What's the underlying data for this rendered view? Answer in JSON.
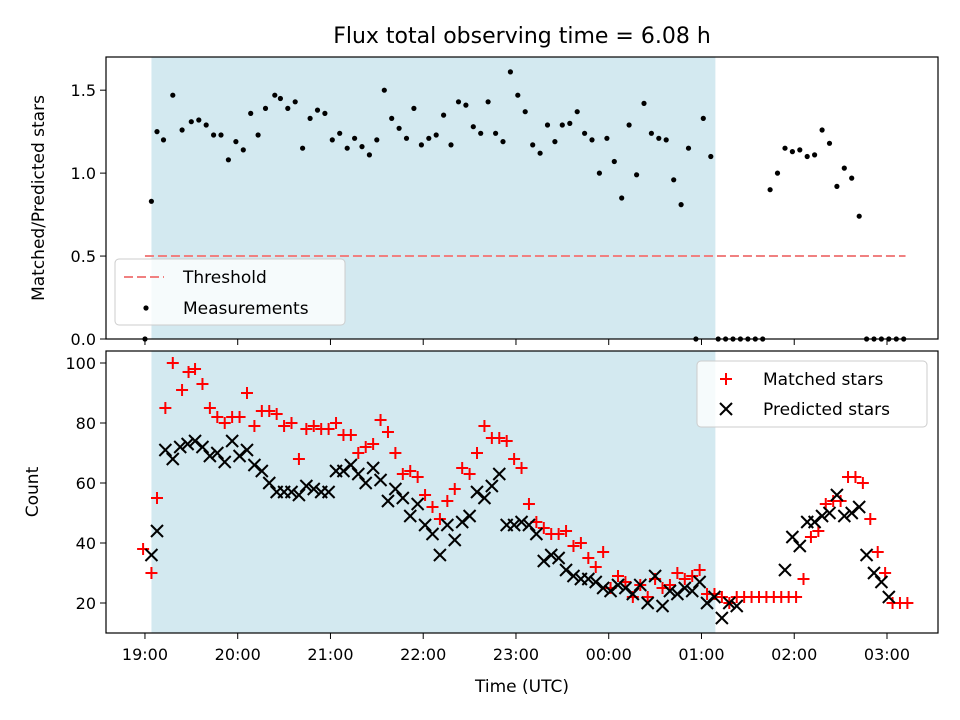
{
  "chart_data": [
    {
      "type": "scatter",
      "title": "Flux total observing time = 6.08 h",
      "xlabel": "",
      "ylabel": "Matched/Predicted stars",
      "ylim": [
        0,
        1.7
      ],
      "yticks": [
        0.0,
        0.5,
        1.0,
        1.5
      ],
      "ytick_labels": [
        "0.0",
        "0.5",
        "1.0",
        "1.5"
      ],
      "xlim_hours": [
        -0.42,
        8.55
      ],
      "shaded_region": {
        "start": 0.07,
        "end": 6.15,
        "color": "#d3e9f0"
      },
      "threshold": {
        "name": "Threshold",
        "value": 0.5,
        "x_start": 0.0,
        "x_end": 8.2,
        "color": "#f08080"
      },
      "legend_position": "lower-left",
      "series": [
        {
          "name": "Measurements",
          "color": "#000000",
          "x": [
            0.0,
            0.07,
            0.13,
            0.2,
            0.3,
            0.4,
            0.5,
            0.58,
            0.66,
            0.74,
            0.82,
            0.9,
            0.98,
            1.06,
            1.14,
            1.22,
            1.3,
            1.4,
            1.46,
            1.54,
            1.62,
            1.7,
            1.78,
            1.86,
            1.94,
            2.02,
            2.1,
            2.18,
            2.26,
            2.34,
            2.42,
            2.5,
            2.58,
            2.66,
            2.74,
            2.82,
            2.9,
            2.98,
            3.06,
            3.14,
            3.22,
            3.3,
            3.38,
            3.46,
            3.54,
            3.62,
            3.7,
            3.78,
            3.86,
            3.94,
            4.02,
            4.1,
            4.18,
            4.26,
            4.34,
            4.42,
            4.5,
            4.58,
            4.66,
            4.74,
            4.82,
            4.9,
            4.98,
            5.06,
            5.14,
            5.22,
            5.3,
            5.38,
            5.46,
            5.54,
            5.62,
            5.7,
            5.78,
            5.86,
            5.94,
            6.02,
            6.1,
            6.18,
            6.26,
            6.34,
            6.42,
            6.5,
            6.58,
            6.66,
            6.74,
            6.82,
            6.9,
            6.98,
            7.06,
            7.14,
            7.22,
            7.3,
            7.38,
            7.46,
            7.54,
            7.62,
            7.7,
            7.78,
            7.86,
            7.94,
            8.02,
            8.1,
            8.18
          ],
          "y": [
            0.0,
            0.83,
            1.25,
            1.2,
            1.47,
            1.26,
            1.31,
            1.32,
            1.29,
            1.23,
            1.23,
            1.08,
            1.19,
            1.14,
            1.36,
            1.23,
            1.39,
            1.47,
            1.45,
            1.39,
            1.43,
            1.15,
            1.33,
            1.38,
            1.36,
            1.2,
            1.24,
            1.15,
            1.21,
            1.16,
            1.11,
            1.2,
            1.5,
            1.33,
            1.27,
            1.21,
            1.39,
            1.17,
            1.21,
            1.23,
            1.35,
            1.17,
            1.43,
            1.41,
            1.28,
            1.24,
            1.43,
            1.24,
            1.19,
            1.61,
            1.47,
            1.37,
            1.17,
            1.12,
            1.29,
            1.19,
            1.29,
            1.3,
            1.37,
            1.24,
            1.2,
            1.0,
            1.21,
            1.07,
            0.85,
            1.29,
            0.99,
            1.42,
            1.24,
            1.21,
            1.2,
            0.96,
            0.81,
            1.15,
            0.0,
            1.33,
            1.1,
            0.0,
            0.0,
            0.0,
            0.0,
            0.0,
            0.0,
            0.0,
            0.9,
            1.0,
            1.15,
            1.13,
            1.14,
            1.1,
            1.11,
            1.26,
            1.18,
            0.92,
            1.03,
            0.97,
            0.74,
            0.0,
            0.0,
            0.0,
            0.0,
            0.0,
            0.0
          ]
        }
      ]
    },
    {
      "type": "scatter",
      "title": "",
      "xlabel": "Time (UTC)",
      "ylabel": "Count",
      "ylim": [
        10,
        104
      ],
      "yticks": [
        20,
        40,
        60,
        80,
        100
      ],
      "ytick_labels": [
        "20",
        "40",
        "60",
        "80",
        "100"
      ],
      "xlim_hours": [
        -0.42,
        8.55
      ],
      "xticks_hours": [
        0,
        1,
        2,
        3,
        4,
        5,
        6,
        7,
        8
      ],
      "xtick_labels": [
        "19:00",
        "20:00",
        "21:00",
        "22:00",
        "23:00",
        "00:00",
        "01:00",
        "02:00",
        "03:00"
      ],
      "shaded_region": {
        "start": 0.07,
        "end": 6.15,
        "color": "#d3e9f0"
      },
      "legend_position": "upper-right",
      "series": [
        {
          "name": "Matched stars",
          "marker": "+",
          "color": "#ff0000",
          "x": [
            -0.02,
            0.07,
            0.13,
            0.22,
            0.3,
            0.4,
            0.47,
            0.54,
            0.62,
            0.7,
            0.78,
            0.86,
            0.94,
            1.02,
            1.1,
            1.18,
            1.26,
            1.34,
            1.42,
            1.5,
            1.58,
            1.66,
            1.74,
            1.82,
            1.9,
            1.98,
            2.06,
            2.14,
            2.22,
            2.3,
            2.38,
            2.46,
            2.54,
            2.62,
            2.7,
            2.78,
            2.86,
            2.94,
            3.02,
            3.1,
            3.18,
            3.26,
            3.34,
            3.42,
            3.5,
            3.58,
            3.66,
            3.74,
            3.82,
            3.9,
            3.98,
            4.06,
            4.14,
            4.22,
            4.3,
            4.38,
            4.46,
            4.54,
            4.62,
            4.7,
            4.78,
            4.86,
            4.94,
            5.02,
            5.1,
            5.18,
            5.26,
            5.34,
            5.42,
            5.5,
            5.58,
            5.66,
            5.74,
            5.82,
            5.9,
            5.98,
            6.06,
            6.14,
            6.22,
            6.3,
            6.38,
            6.46,
            6.54,
            6.62,
            6.7,
            6.78,
            6.86,
            6.94,
            7.02,
            7.1,
            7.18,
            7.26,
            7.34,
            7.42,
            7.5,
            7.58,
            7.66,
            7.74,
            7.82,
            7.9,
            7.98,
            8.06,
            8.14,
            8.22
          ],
          "y": [
            38,
            30,
            55,
            85,
            100,
            91,
            97,
            98,
            93,
            85,
            82,
            80,
            82,
            82,
            90,
            79,
            84,
            84,
            83,
            79,
            80,
            68,
            78,
            79,
            78,
            78,
            80,
            76,
            76,
            70,
            72,
            73,
            81,
            77,
            70,
            63,
            64,
            62,
            56,
            52,
            48,
            54,
            58,
            65,
            63,
            70,
            79,
            75,
            75,
            74,
            68,
            65,
            53,
            47,
            45,
            43,
            43,
            44,
            39,
            40,
            35,
            32,
            37,
            25,
            29,
            27,
            22,
            26,
            22,
            28,
            25,
            26,
            30,
            28,
            29,
            31,
            23,
            23,
            22,
            20,
            22,
            22,
            22,
            22,
            22,
            22,
            22,
            22,
            22,
            28,
            42,
            44,
            53,
            54,
            54,
            62,
            62,
            60,
            48,
            37,
            30,
            20,
            20,
            20
          ]
        },
        {
          "name": "Predicted stars",
          "marker": "x",
          "color": "#000000",
          "x": [
            0.07,
            0.13,
            0.22,
            0.3,
            0.38,
            0.46,
            0.54,
            0.62,
            0.7,
            0.78,
            0.86,
            0.94,
            1.02,
            1.1,
            1.18,
            1.26,
            1.34,
            1.42,
            1.5,
            1.58,
            1.66,
            1.74,
            1.82,
            1.9,
            1.98,
            2.06,
            2.14,
            2.22,
            2.3,
            2.38,
            2.46,
            2.54,
            2.62,
            2.7,
            2.78,
            2.86,
            2.94,
            3.02,
            3.1,
            3.18,
            3.26,
            3.34,
            3.42,
            3.5,
            3.58,
            3.66,
            3.74,
            3.82,
            3.9,
            3.98,
            4.06,
            4.14,
            4.22,
            4.3,
            4.38,
            4.46,
            4.54,
            4.62,
            4.7,
            4.78,
            4.86,
            4.94,
            5.02,
            5.1,
            5.18,
            5.26,
            5.34,
            5.42,
            5.5,
            5.58,
            5.66,
            5.74,
            5.82,
            5.9,
            5.98,
            6.06,
            6.14,
            6.22,
            6.3,
            6.38,
            6.9,
            6.98,
            7.06,
            7.14,
            7.22,
            7.3,
            7.38,
            7.46,
            7.54,
            7.62,
            7.7,
            7.78,
            7.86,
            7.94,
            8.02
          ],
          "y": [
            36,
            44,
            71,
            68,
            72,
            73,
            74,
            72,
            69,
            70,
            67,
            74,
            69,
            71,
            66,
            64,
            60,
            57,
            57,
            57,
            56,
            59,
            58,
            57,
            57,
            64,
            64,
            66,
            63,
            60,
            65,
            61,
            54,
            58,
            55,
            49,
            53,
            46,
            43,
            36,
            46,
            41,
            47,
            49,
            57,
            55,
            59,
            63,
            46,
            46,
            47,
            46,
            43,
            34,
            36,
            35,
            31,
            29,
            28,
            28,
            27,
            25,
            24,
            26,
            25,
            23,
            26,
            20,
            29,
            19,
            24,
            23,
            25,
            24,
            27,
            20,
            22,
            15,
            20,
            19,
            31,
            42,
            39,
            47,
            47,
            49,
            50,
            56,
            49,
            50,
            52,
            36,
            30,
            27,
            22
          ]
        }
      ]
    }
  ]
}
